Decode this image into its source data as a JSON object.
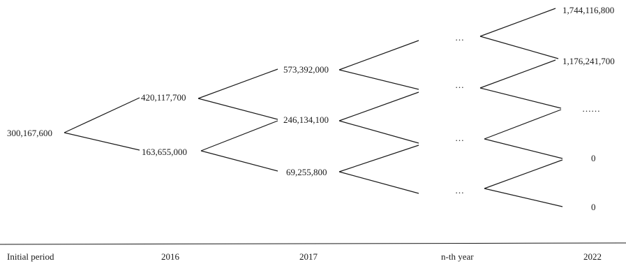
{
  "tree": {
    "root": "300,167,600",
    "y2016": {
      "up": "420,117,700",
      "down": "163,655,000"
    },
    "y2017": {
      "up": "573,392,000",
      "mid": "246,134,100",
      "down": "69,255,800"
    },
    "nth": {
      "e1": "…",
      "e2": "…",
      "e3": "…",
      "e4": "…"
    },
    "y2022": {
      "v1": "1,744,116,800",
      "v2": "1,176,241,700",
      "v3": "……",
      "v4": "0",
      "v5": "0"
    }
  },
  "axis": {
    "labels": [
      "Initial period",
      "2016",
      "2017",
      "n-th year",
      "2022"
    ]
  }
}
